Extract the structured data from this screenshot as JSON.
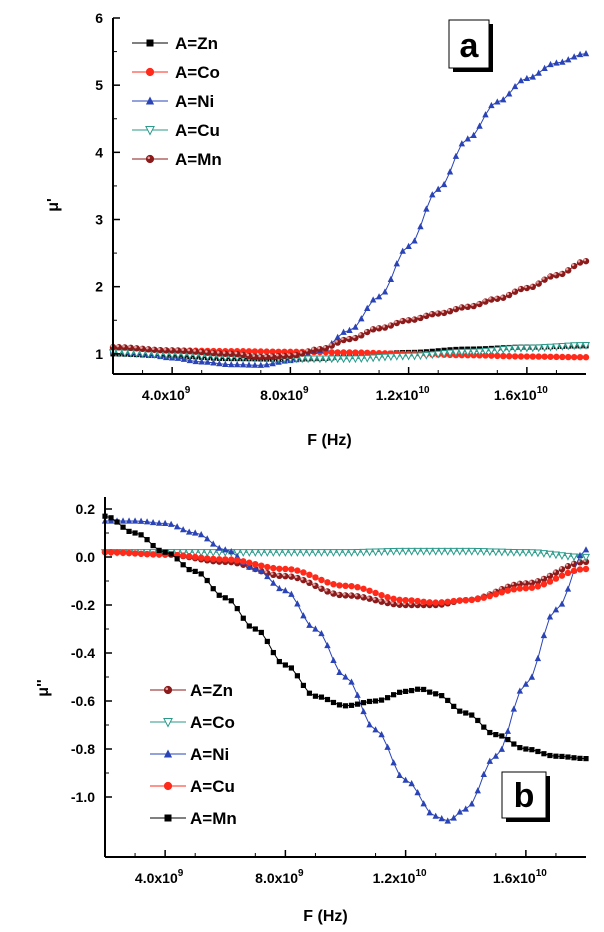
{
  "chart_data": [
    {
      "id": "a",
      "type": "line",
      "panel_label": "a",
      "ylabel": "μ'",
      "xlabel": "F (Hz)",
      "xlim": [
        2000000000,
        18000000000
      ],
      "ylim": [
        0.7,
        6
      ],
      "xticks": [
        4000000000,
        8000000000,
        12000000000,
        16000000000
      ],
      "xtick_labels": [
        {
          "m": "4.0x10",
          "e": "9"
        },
        {
          "m": "8.0x10",
          "e": "9"
        },
        {
          "m": "1.2x10",
          "e": "10"
        },
        {
          "m": "1.6x10",
          "e": "10"
        }
      ],
      "yticks": [
        1,
        2,
        3,
        4,
        5,
        6
      ],
      "ytick_labels": [
        "1",
        "2",
        "3",
        "4",
        "5",
        "6"
      ],
      "grid": false,
      "legend_position": "top-left",
      "series": [
        {
          "name": "A=Zn",
          "color": "#000000",
          "marker": "square",
          "x": [
            2000000000.0,
            4000000000.0,
            6000000000.0,
            8000000000.0,
            9000000000.0,
            10000000000.0,
            12000000000.0,
            14000000000.0,
            16000000000.0,
            18000000000.0
          ],
          "y": [
            1.0,
            0.97,
            0.93,
            0.92,
            0.93,
            0.96,
            1.02,
            1.07,
            1.1,
            1.12
          ]
        },
        {
          "name": "A=Co",
          "color": "#ff2a1a",
          "marker": "circle",
          "x": [
            2000000000.0,
            4000000000.0,
            6000000000.0,
            8000000000.0,
            10000000000.0,
            12000000000.0,
            14000000000.0,
            16000000000.0,
            18000000000.0
          ],
          "y": [
            1.07,
            1.05,
            1.04,
            1.03,
            1.02,
            1.0,
            0.98,
            0.96,
            0.95
          ]
        },
        {
          "name": "A=Ni",
          "color": "#2a44b8",
          "marker": "triangle-up",
          "x": [
            2000000000.0,
            3000000000.0,
            4000000000.0,
            5000000000.0,
            6000000000.0,
            7000000000.0,
            8000000000.0,
            9000000000.0,
            10000000000.0,
            11000000000.0,
            12000000000.0,
            13000000000.0,
            14000000000.0,
            15000000000.0,
            16000000000.0,
            17000000000.0,
            18000000000.0
          ],
          "y": [
            1.05,
            1.0,
            0.94,
            0.88,
            0.84,
            0.83,
            0.9,
            1.05,
            1.35,
            1.85,
            2.6,
            3.45,
            4.2,
            4.75,
            5.1,
            5.33,
            5.47
          ]
        },
        {
          "name": "A=Cu",
          "color": "#2a9a8a",
          "marker": "triangle-down",
          "x": [
            2000000000.0,
            4000000000.0,
            6000000000.0,
            8000000000.0,
            10000000000.0,
            12000000000.0,
            14000000000.0,
            16000000000.0,
            18000000000.0
          ],
          "y": [
            1.02,
            0.99,
            0.95,
            0.93,
            0.93,
            0.97,
            1.03,
            1.09,
            1.13
          ]
        },
        {
          "name": "A=Mn",
          "color": "#8b1a1a",
          "marker": "sphere",
          "x": [
            2000000000.0,
            4000000000.0,
            6000000000.0,
            7000000000.0,
            8000000000.0,
            9000000000.0,
            10000000000.0,
            11000000000.0,
            12000000000.0,
            13000000000.0,
            14000000000.0,
            15000000000.0,
            16000000000.0,
            17000000000.0,
            18000000000.0
          ],
          "y": [
            1.1,
            1.05,
            1.0,
            0.95,
            0.97,
            1.07,
            1.22,
            1.38,
            1.5,
            1.6,
            1.7,
            1.82,
            1.98,
            2.17,
            2.38
          ]
        }
      ]
    },
    {
      "id": "b",
      "type": "line",
      "panel_label": "b",
      "ylabel": "μ''",
      "xlabel": "F (Hz)",
      "xlim": [
        2000000000,
        18000000000
      ],
      "ylim": [
        -1.25,
        0.25
      ],
      "xticks": [
        4000000000,
        8000000000,
        12000000000,
        16000000000
      ],
      "xtick_labels": [
        {
          "m": "4.0x10",
          "e": "9"
        },
        {
          "m": "8.0x10",
          "e": "9"
        },
        {
          "m": "1.2x10",
          "e": "10"
        },
        {
          "m": "1.6x10",
          "e": "10"
        }
      ],
      "yticks": [
        0.2,
        0.0,
        -0.2,
        -0.4,
        -0.6,
        -0.8,
        -1.0
      ],
      "ytick_labels": [
        "0.2",
        "0.0",
        "-0.2",
        "-0.4",
        "-0.6",
        "-0.8",
        "-1.0"
      ],
      "grid": false,
      "legend_position": "bottom-left",
      "series": [
        {
          "name": "A=Zn",
          "color": "#8b1a1a",
          "marker": "sphere",
          "x": [
            2000000000.0,
            4000000000.0,
            6000000000.0,
            8000000000.0,
            10000000000.0,
            12000000000.0,
            13000000000.0,
            14000000000.0,
            16000000000.0,
            18000000000.0
          ],
          "y": [
            0.02,
            0.01,
            -0.02,
            -0.08,
            -0.16,
            -0.2,
            -0.2,
            -0.18,
            -0.11,
            -0.02
          ]
        },
        {
          "name": "A=Co",
          "color": "#2a9a8a",
          "marker": "triangle-down",
          "x": [
            2000000000.0,
            4000000000.0,
            6000000000.0,
            8000000000.0,
            10000000000.0,
            12000000000.0,
            14000000000.0,
            16000000000.0,
            18000000000.0
          ],
          "y": [
            0.02,
            0.02,
            0.02,
            0.02,
            0.02,
            0.025,
            0.025,
            0.02,
            0.0
          ]
        },
        {
          "name": "A=Ni",
          "color": "#2a44b8",
          "marker": "triangle-up",
          "x": [
            2000000000.0,
            3000000000.0,
            4000000000.0,
            5000000000.0,
            6000000000.0,
            7000000000.0,
            8000000000.0,
            9000000000.0,
            10000000000.0,
            11000000000.0,
            12000000000.0,
            13000000000.0,
            13400000000.0,
            14000000000.0,
            15000000000.0,
            16000000000.0,
            17000000000.0,
            18000000000.0
          ],
          "y": [
            0.15,
            0.15,
            0.14,
            0.1,
            0.03,
            -0.05,
            -0.14,
            -0.3,
            -0.5,
            -0.72,
            -0.93,
            -1.08,
            -1.1,
            -1.05,
            -0.83,
            -0.53,
            -0.22,
            0.03
          ]
        },
        {
          "name": "A=Cu",
          "color": "#ff2a1a",
          "marker": "circle",
          "x": [
            2000000000.0,
            4000000000.0,
            6000000000.0,
            8000000000.0,
            10000000000.0,
            12000000000.0,
            13000000000.0,
            14000000000.0,
            16000000000.0,
            18000000000.0
          ],
          "y": [
            0.02,
            0.01,
            -0.01,
            -0.05,
            -0.12,
            -0.18,
            -0.19,
            -0.18,
            -0.13,
            -0.05
          ]
        },
        {
          "name": "A=Mn",
          "color": "#000000",
          "marker": "square",
          "x": [
            2000000000.0,
            3000000000.0,
            4000000000.0,
            5000000000.0,
            6000000000.0,
            7000000000.0,
            8000000000.0,
            9000000000.0,
            10000000000.0,
            11000000000.0,
            12000000000.0,
            12500000000.0,
            13000000000.0,
            14000000000.0,
            15000000000.0,
            16000000000.0,
            17000000000.0,
            18000000000.0
          ],
          "y": [
            0.17,
            0.1,
            0.02,
            -0.06,
            -0.17,
            -0.3,
            -0.45,
            -0.58,
            -0.62,
            -0.6,
            -0.56,
            -0.55,
            -0.57,
            -0.65,
            -0.74,
            -0.8,
            -0.83,
            -0.84
          ]
        }
      ]
    }
  ]
}
